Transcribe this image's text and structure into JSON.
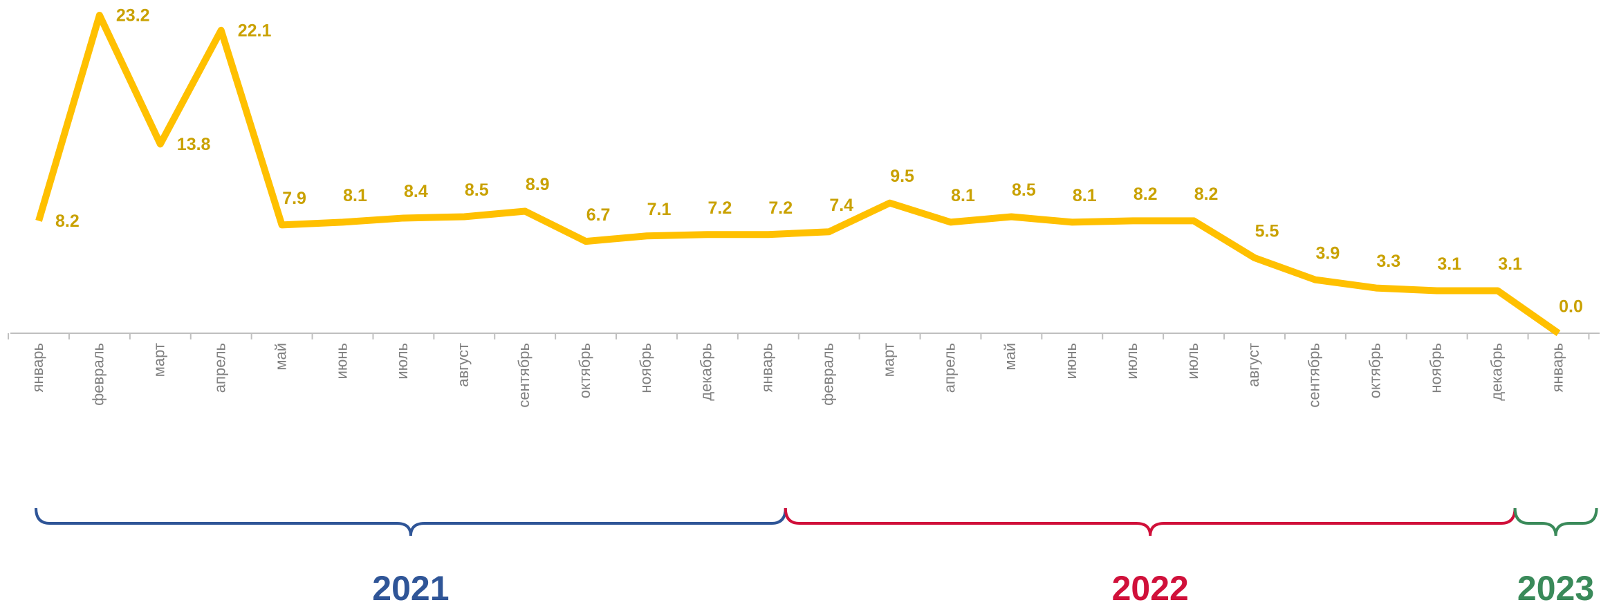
{
  "chart_data": {
    "type": "line",
    "categories": [
      "январь",
      "февраль",
      "март",
      "апрель",
      "май",
      "июнь",
      "июль",
      "август",
      "сентябрь",
      "октябрь",
      "ноябрь",
      "декабрь",
      "январь",
      "февраль",
      "март",
      "апрель",
      "май",
      "июнь",
      "июль",
      "июль",
      "август",
      "сентябрь",
      "октябрь",
      "ноябрь",
      "декабрь",
      "январь"
    ],
    "series": [
      {
        "color": "#ffc000",
        "values": [
          8.2,
          23.2,
          13.8,
          22.1,
          7.9,
          8.1,
          8.4,
          8.5,
          8.9,
          6.7,
          7.1,
          7.2,
          7.2,
          7.4,
          9.5,
          8.1,
          8.5,
          8.1,
          8.2,
          8.2,
          5.5,
          3.9,
          3.3,
          3.1,
          3.1,
          0
        ],
        "value_labels": [
          "8.2",
          "23.2",
          "13.8",
          "22.1",
          "7.9",
          "8.1",
          "8.4",
          "8.5",
          "8.9",
          "6.7",
          "7.1",
          "7.2",
          "7.2",
          "7.4",
          "9.5",
          "8.1",
          "8.5",
          "8.1",
          "8.2",
          "8.2",
          "5.5",
          "3.9",
          "3.3",
          "3.1",
          "3.1",
          "0.0"
        ]
      }
    ],
    "groups": [
      {
        "label": "2021",
        "color": "#2f5597",
        "from": 0,
        "to": 12
      },
      {
        "label": "2022",
        "color": "#d0103a",
        "from": 12,
        "to": 24
      },
      {
        "label": "2023",
        "color": "#3a8a5a",
        "from": 24,
        "to": 25
      }
    ]
  }
}
